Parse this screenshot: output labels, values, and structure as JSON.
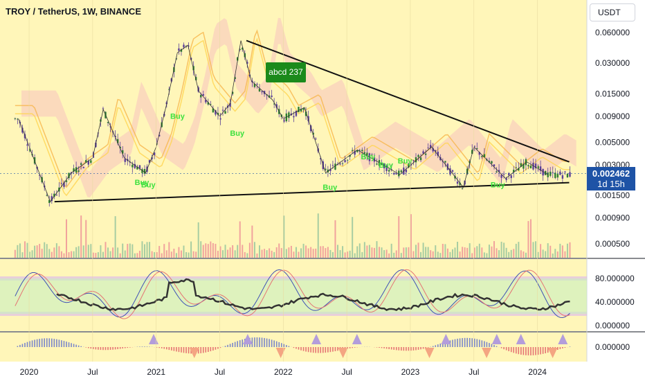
{
  "header": {
    "title": "TROY / TetherUS, 1W, BINANCE",
    "currency_button": "USDT"
  },
  "price_tag": {
    "price": "0.002462",
    "countdown": "1d 15h"
  },
  "annotation": {
    "label": "abcd 237"
  },
  "colors": {
    "background": "#fff6b9",
    "up": "#26a69a",
    "down": "#ef5350",
    "candle": "#5b3f98",
    "buy": "#3ee13e",
    "trendline": "#111111",
    "price_tag": "#1e53a6"
  },
  "chart_data": [
    {
      "type": "candlestick",
      "title": "TROY / TetherUS, 1W, BINANCE",
      "y_scale": "log",
      "y_ticks": [
        "0.060000",
        "0.030000",
        "0.015000",
        "0.009000",
        "0.005000",
        "0.003000",
        "0.002462",
        "0.001500",
        "0.000900",
        "0.000500"
      ],
      "x_ticks": [
        "2020",
        "Jul",
        "2021",
        "Jul",
        "2022",
        "Jul",
        "2023",
        "Jul",
        "2024"
      ],
      "last_price": 0.002462,
      "approx_path": [
        {
          "date": "2019-12",
          "price": 0.0085
        },
        {
          "date": "2020-03",
          "price": 0.0013
        },
        {
          "date": "2020-05",
          "price": 0.0025
        },
        {
          "date": "2020-07",
          "price": 0.0035
        },
        {
          "date": "2020-08",
          "price": 0.0105
        },
        {
          "date": "2020-10",
          "price": 0.0035
        },
        {
          "date": "2020-12",
          "price": 0.0025
        },
        {
          "date": "2021-01",
          "price": 0.0045
        },
        {
          "date": "2021-02",
          "price": 0.012
        },
        {
          "date": "2021-03",
          "price": 0.038
        },
        {
          "date": "2021-04",
          "price": 0.045
        },
        {
          "date": "2021-05",
          "price": 0.016
        },
        {
          "date": "2021-07",
          "price": 0.009
        },
        {
          "date": "2021-08",
          "price": 0.012
        },
        {
          "date": "2021-09",
          "price": 0.05
        },
        {
          "date": "2021-10",
          "price": 0.02
        },
        {
          "date": "2021-12",
          "price": 0.013
        },
        {
          "date": "2022-01",
          "price": 0.0085
        },
        {
          "date": "2022-03",
          "price": 0.011
        },
        {
          "date": "2022-05",
          "price": 0.0025
        },
        {
          "date": "2022-08",
          "price": 0.0042
        },
        {
          "date": "2022-12",
          "price": 0.0024
        },
        {
          "date": "2023-03",
          "price": 0.0045
        },
        {
          "date": "2023-06",
          "price": 0.0018
        },
        {
          "date": "2023-07",
          "price": 0.0045
        },
        {
          "date": "2023-10",
          "price": 0.0022
        },
        {
          "date": "2023-12",
          "price": 0.0032
        },
        {
          "date": "2024-02",
          "price": 0.0024
        }
      ],
      "buy_labels": [
        "Buy",
        "Buy",
        "Buy",
        "Buy",
        "Buy",
        "Buy",
        "Buy",
        "Buy",
        "Buy"
      ],
      "annotations": [
        "abcd 237"
      ]
    },
    {
      "type": "oscillator",
      "y_ticks": [
        "80.000000",
        "40.000000",
        "0.000000"
      ],
      "bands": [
        20,
        80
      ]
    },
    {
      "type": "histogram",
      "y_ticks": [
        "0.000000"
      ]
    }
  ]
}
